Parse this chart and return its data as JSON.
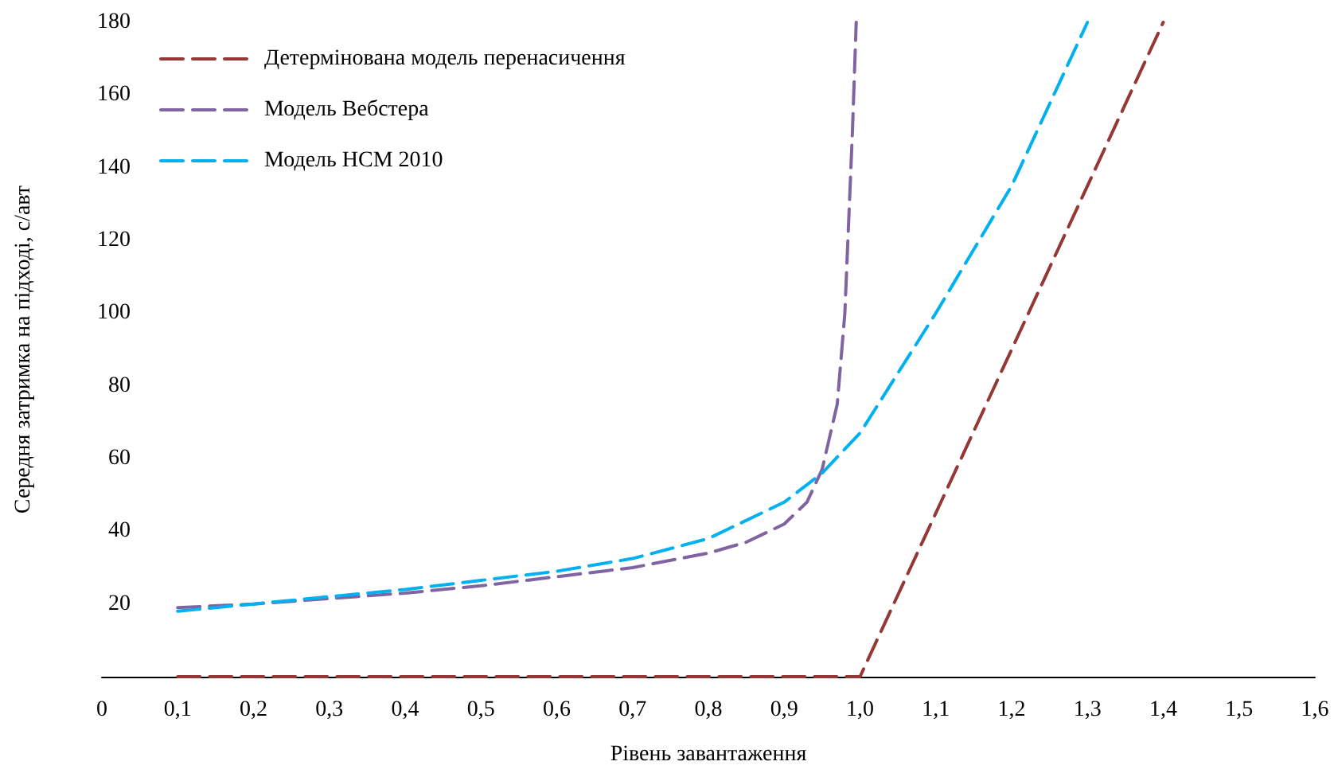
{
  "chart_data": {
    "type": "line",
    "xlabel": "Рівень завантаження",
    "ylabel": "Середня затримка на підході, с/авт",
    "xlim": [
      0,
      1.6
    ],
    "xticks": [
      0,
      {
        "value": 0.1,
        "label": "0,1"
      },
      {
        "value": 0.2,
        "label": "0,2"
      },
      {
        "value": 0.3,
        "label": "0,3"
      },
      {
        "value": 0.4,
        "label": "0,4"
      },
      {
        "value": 0.5,
        "label": "0,5"
      },
      {
        "value": 0.6,
        "label": "0,6"
      },
      {
        "value": 0.7,
        "label": "0,7"
      },
      {
        "value": 0.8,
        "label": "0,8"
      },
      {
        "value": 0.9,
        "label": "0,9"
      },
      {
        "value": 1.0,
        "label": "1,0"
      },
      {
        "value": 1.1,
        "label": "1,1"
      },
      {
        "value": 1.2,
        "label": "1,2"
      },
      {
        "value": 1.3,
        "label": "1,3"
      },
      {
        "value": 1.4,
        "label": "1,4"
      },
      {
        "value": 1.5,
        "label": "1,5"
      },
      {
        "value": 1.6,
        "label": "1,6"
      }
    ],
    "ylim": [
      0,
      180
    ],
    "yticks": [
      20,
      40,
      60,
      80,
      100,
      120,
      140,
      160,
      180
    ],
    "grid": false,
    "legend": "top left",
    "marker": "none",
    "series": [
      {
        "name": "Детермінована модель перенасичення",
        "color": "#953735",
        "line_style": "dashed",
        "x": [
          0.1,
          1.0,
          1.4
        ],
        "values": [
          0,
          0,
          180
        ]
      },
      {
        "name": "Модель Вебстера",
        "color": "#8064a2",
        "line_style": "dashed",
        "x": [
          0.1,
          0.2,
          0.3,
          0.4,
          0.5,
          0.6,
          0.7,
          0.8,
          0.85,
          0.9,
          0.93,
          0.95,
          0.97,
          0.98,
          0.99,
          0.995
        ],
        "values": [
          19,
          20,
          21.5,
          23,
          25,
          27.5,
          30,
          34,
          37,
          42,
          48,
          57,
          75,
          100,
          150,
          180
        ]
      },
      {
        "name": "Модель HCM 2010",
        "color": "#00b0f0",
        "line_style": "dashed",
        "x": [
          0.1,
          0.2,
          0.3,
          0.4,
          0.5,
          0.6,
          0.7,
          0.8,
          0.9,
          0.95,
          1.0,
          1.1,
          1.2,
          1.3
        ],
        "values": [
          18,
          20,
          22,
          24,
          26.5,
          29,
          32.5,
          38,
          48,
          56,
          67,
          100,
          135,
          180
        ]
      }
    ]
  }
}
